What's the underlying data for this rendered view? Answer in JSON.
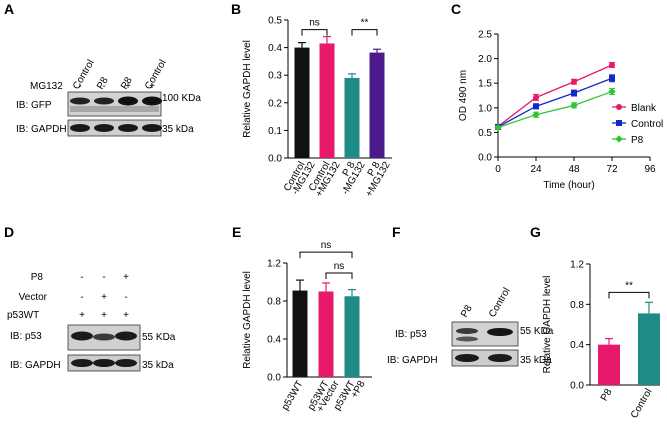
{
  "panel_labels": [
    "A",
    "B",
    "C",
    "D",
    "E",
    "F",
    "G"
  ],
  "blot_A": {
    "lane_labels": [
      "Control",
      "P8",
      "P8",
      "Control"
    ],
    "mg132_label": "MG132",
    "mg132_signs": [
      "-",
      "-",
      "+",
      "+"
    ],
    "rows": [
      {
        "label": "IB: GFP",
        "marker": "100 KDa"
      },
      {
        "label": "IB: GAPDH",
        "marker": "35 kDa"
      }
    ]
  },
  "blot_D": {
    "conditions": [
      {
        "label": "P8",
        "signs": [
          "-",
          "-",
          "+"
        ]
      },
      {
        "label": "Vector",
        "signs": [
          "-",
          "+",
          "-"
        ]
      },
      {
        "label": "p53WT",
        "signs": [
          "+",
          "+",
          "+"
        ]
      }
    ],
    "rows": [
      {
        "label": "IB: p53",
        "marker": "55 KDa"
      },
      {
        "label": "IB: GAPDH",
        "marker": "35 kDa"
      }
    ]
  },
  "blot_F": {
    "lane_labels": [
      "P8",
      "Control"
    ],
    "rows": [
      {
        "label": "IB: p53",
        "marker": "55 KDa"
      },
      {
        "label": "IB: GAPDH",
        "marker": "35 kDa"
      }
    ]
  },
  "chart_data": [
    {
      "panel": "B",
      "type": "bar",
      "ylabel": "Relative GAPDH level",
      "ylim": [
        0,
        0.5
      ],
      "yticks": [
        "0.0",
        "0.1",
        "0.2",
        "0.3",
        "0.4",
        "0.5"
      ],
      "categories": [
        [
          "Control",
          "-MG132"
        ],
        [
          "Control",
          "+MG132"
        ],
        [
          "P 8",
          "-MG132"
        ],
        [
          "P 8",
          "+MG132"
        ]
      ],
      "values": [
        0.4,
        0.415,
        0.29,
        0.382
      ],
      "errors": [
        0.018,
        0.025,
        0.015,
        0.012
      ],
      "colors": [
        "#111111",
        "#e8196b",
        "#1f8b86",
        "#4b1a8c"
      ],
      "comparisons": [
        {
          "from": 0,
          "to": 1,
          "label": "ns"
        },
        {
          "from": 2,
          "to": 3,
          "label": "**"
        }
      ]
    },
    {
      "panel": "C",
      "type": "line",
      "xlabel": "Time (hour)",
      "ylabel": "OD 490 nm",
      "xlim": [
        0,
        96
      ],
      "ylim": [
        0,
        2.5
      ],
      "xticks": [
        "0",
        "24",
        "48",
        "72",
        "96"
      ],
      "yticks": [
        "0.0",
        "0.5",
        "1.0",
        "1.5",
        "2.0",
        "2.5"
      ],
      "x": [
        0,
        24,
        48,
        72
      ],
      "series": [
        {
          "name": "Blank",
          "values": [
            0.62,
            1.21,
            1.53,
            1.87
          ],
          "errors": [
            0.03,
            0.06,
            0.05,
            0.05
          ],
          "color": "#e8196b",
          "marker": "circle"
        },
        {
          "name": "Control",
          "values": [
            0.61,
            1.03,
            1.3,
            1.6
          ],
          "errors": [
            0.03,
            0.05,
            0.06,
            0.07
          ],
          "color": "#1528c8",
          "marker": "square"
        },
        {
          "name": "P8",
          "values": [
            0.6,
            0.86,
            1.05,
            1.33
          ],
          "errors": [
            0.03,
            0.05,
            0.05,
            0.06
          ],
          "color": "#2ec42e",
          "marker": "diamond"
        }
      ]
    },
    {
      "panel": "E",
      "type": "bar",
      "ylabel": "Relative GAPDH level",
      "ylim": [
        0,
        1.2
      ],
      "yticks": [
        "0.0",
        "0.4",
        "0.8",
        "1.2"
      ],
      "categories": [
        [
          "p53WT"
        ],
        [
          "p53WT",
          "+Vector"
        ],
        [
          "p53WT",
          "+P8"
        ]
      ],
      "values": [
        0.91,
        0.9,
        0.85
      ],
      "errors": [
        0.11,
        0.09,
        0.07
      ],
      "colors": [
        "#111111",
        "#e8196b",
        "#1f8b86"
      ],
      "comparisons": [
        {
          "from": 0,
          "to": 2,
          "label": "ns"
        },
        {
          "from": 1,
          "to": 2,
          "label": "ns"
        }
      ]
    },
    {
      "panel": "G",
      "type": "bar",
      "ylabel": "Relative GAPDH level",
      "ylim": [
        0,
        1.2
      ],
      "yticks": [
        "0.0",
        "0.4",
        "0.8",
        "1.2"
      ],
      "categories": [
        [
          "P8"
        ],
        [
          "Control"
        ]
      ],
      "values": [
        0.4,
        0.71
      ],
      "errors": [
        0.06,
        0.11
      ],
      "colors": [
        "#e8196b",
        "#1f8b86"
      ],
      "comparisons": [
        {
          "from": 0,
          "to": 1,
          "label": "**"
        }
      ]
    }
  ]
}
